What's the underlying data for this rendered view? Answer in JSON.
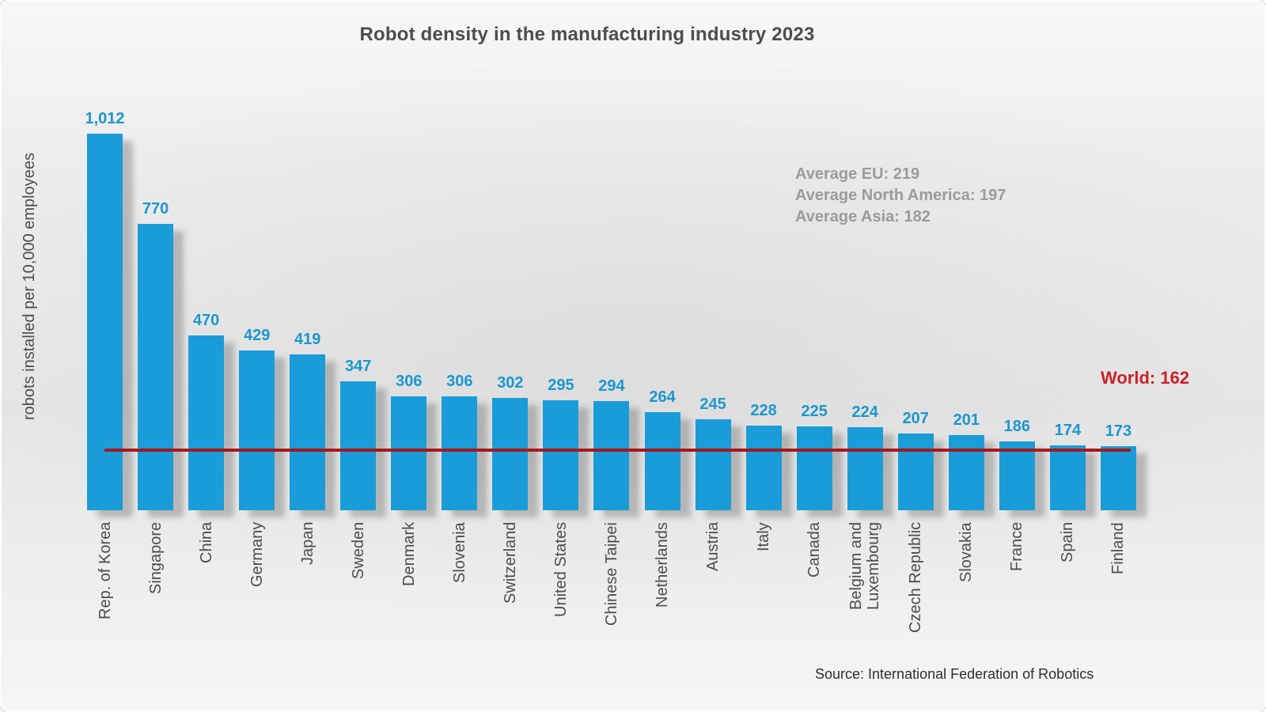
{
  "title": "Robot density in the manufacturing industry 2023",
  "y_axis": {
    "label": "robots installed per 10,000 employees"
  },
  "annotations": {
    "averages": [
      "Average EU: 219",
      "Average North America: 197",
      "Average Asia: 182"
    ],
    "world": "World: 162"
  },
  "source": "Source: International Federation of Robotics",
  "colors": {
    "bar": "#1A9CD8",
    "value_label": "#1B97CF",
    "world_line": "#A6191C",
    "world_text": "#CB2229",
    "title_text": "#4D4D4D",
    "average_text": "#9B9B9F"
  },
  "chart_data": {
    "type": "bar",
    "title": "Robot density in the manufacturing industry 2023",
    "xlabel": "",
    "ylabel": "robots installed per 10,000 employees",
    "categories": [
      "Rep. of Korea",
      "Singapore",
      "China",
      "Germany",
      "Japan",
      "Sweden",
      "Denmark",
      "Slovenia",
      "Switzerland",
      "United States",
      "Chinese Taipei",
      "Netherlands",
      "Austria",
      "Italy",
      "Canada",
      "Belgium and Luxembourg",
      "Czech Republic",
      "Slovakia",
      "France",
      "Spain",
      "Finland"
    ],
    "values": [
      1012,
      770,
      470,
      429,
      419,
      347,
      306,
      306,
      302,
      295,
      294,
      264,
      245,
      228,
      225,
      224,
      207,
      201,
      186,
      174,
      173
    ],
    "display_values": [
      "1,012",
      "770",
      "470",
      "429",
      "419",
      "347",
      "306",
      "306",
      "302",
      "295",
      "294",
      "264",
      "245",
      "228",
      "225",
      "224",
      "207",
      "201",
      "186",
      "174",
      "173"
    ],
    "reference_line": {
      "label": "World: 162",
      "value": 162
    },
    "annotations": [
      "Average EU: 219",
      "Average North America: 197",
      "Average Asia: 182"
    ],
    "ylim": [
      0,
      1100
    ],
    "grid": false,
    "legend": false,
    "bar_color": "#1A9CD8"
  }
}
